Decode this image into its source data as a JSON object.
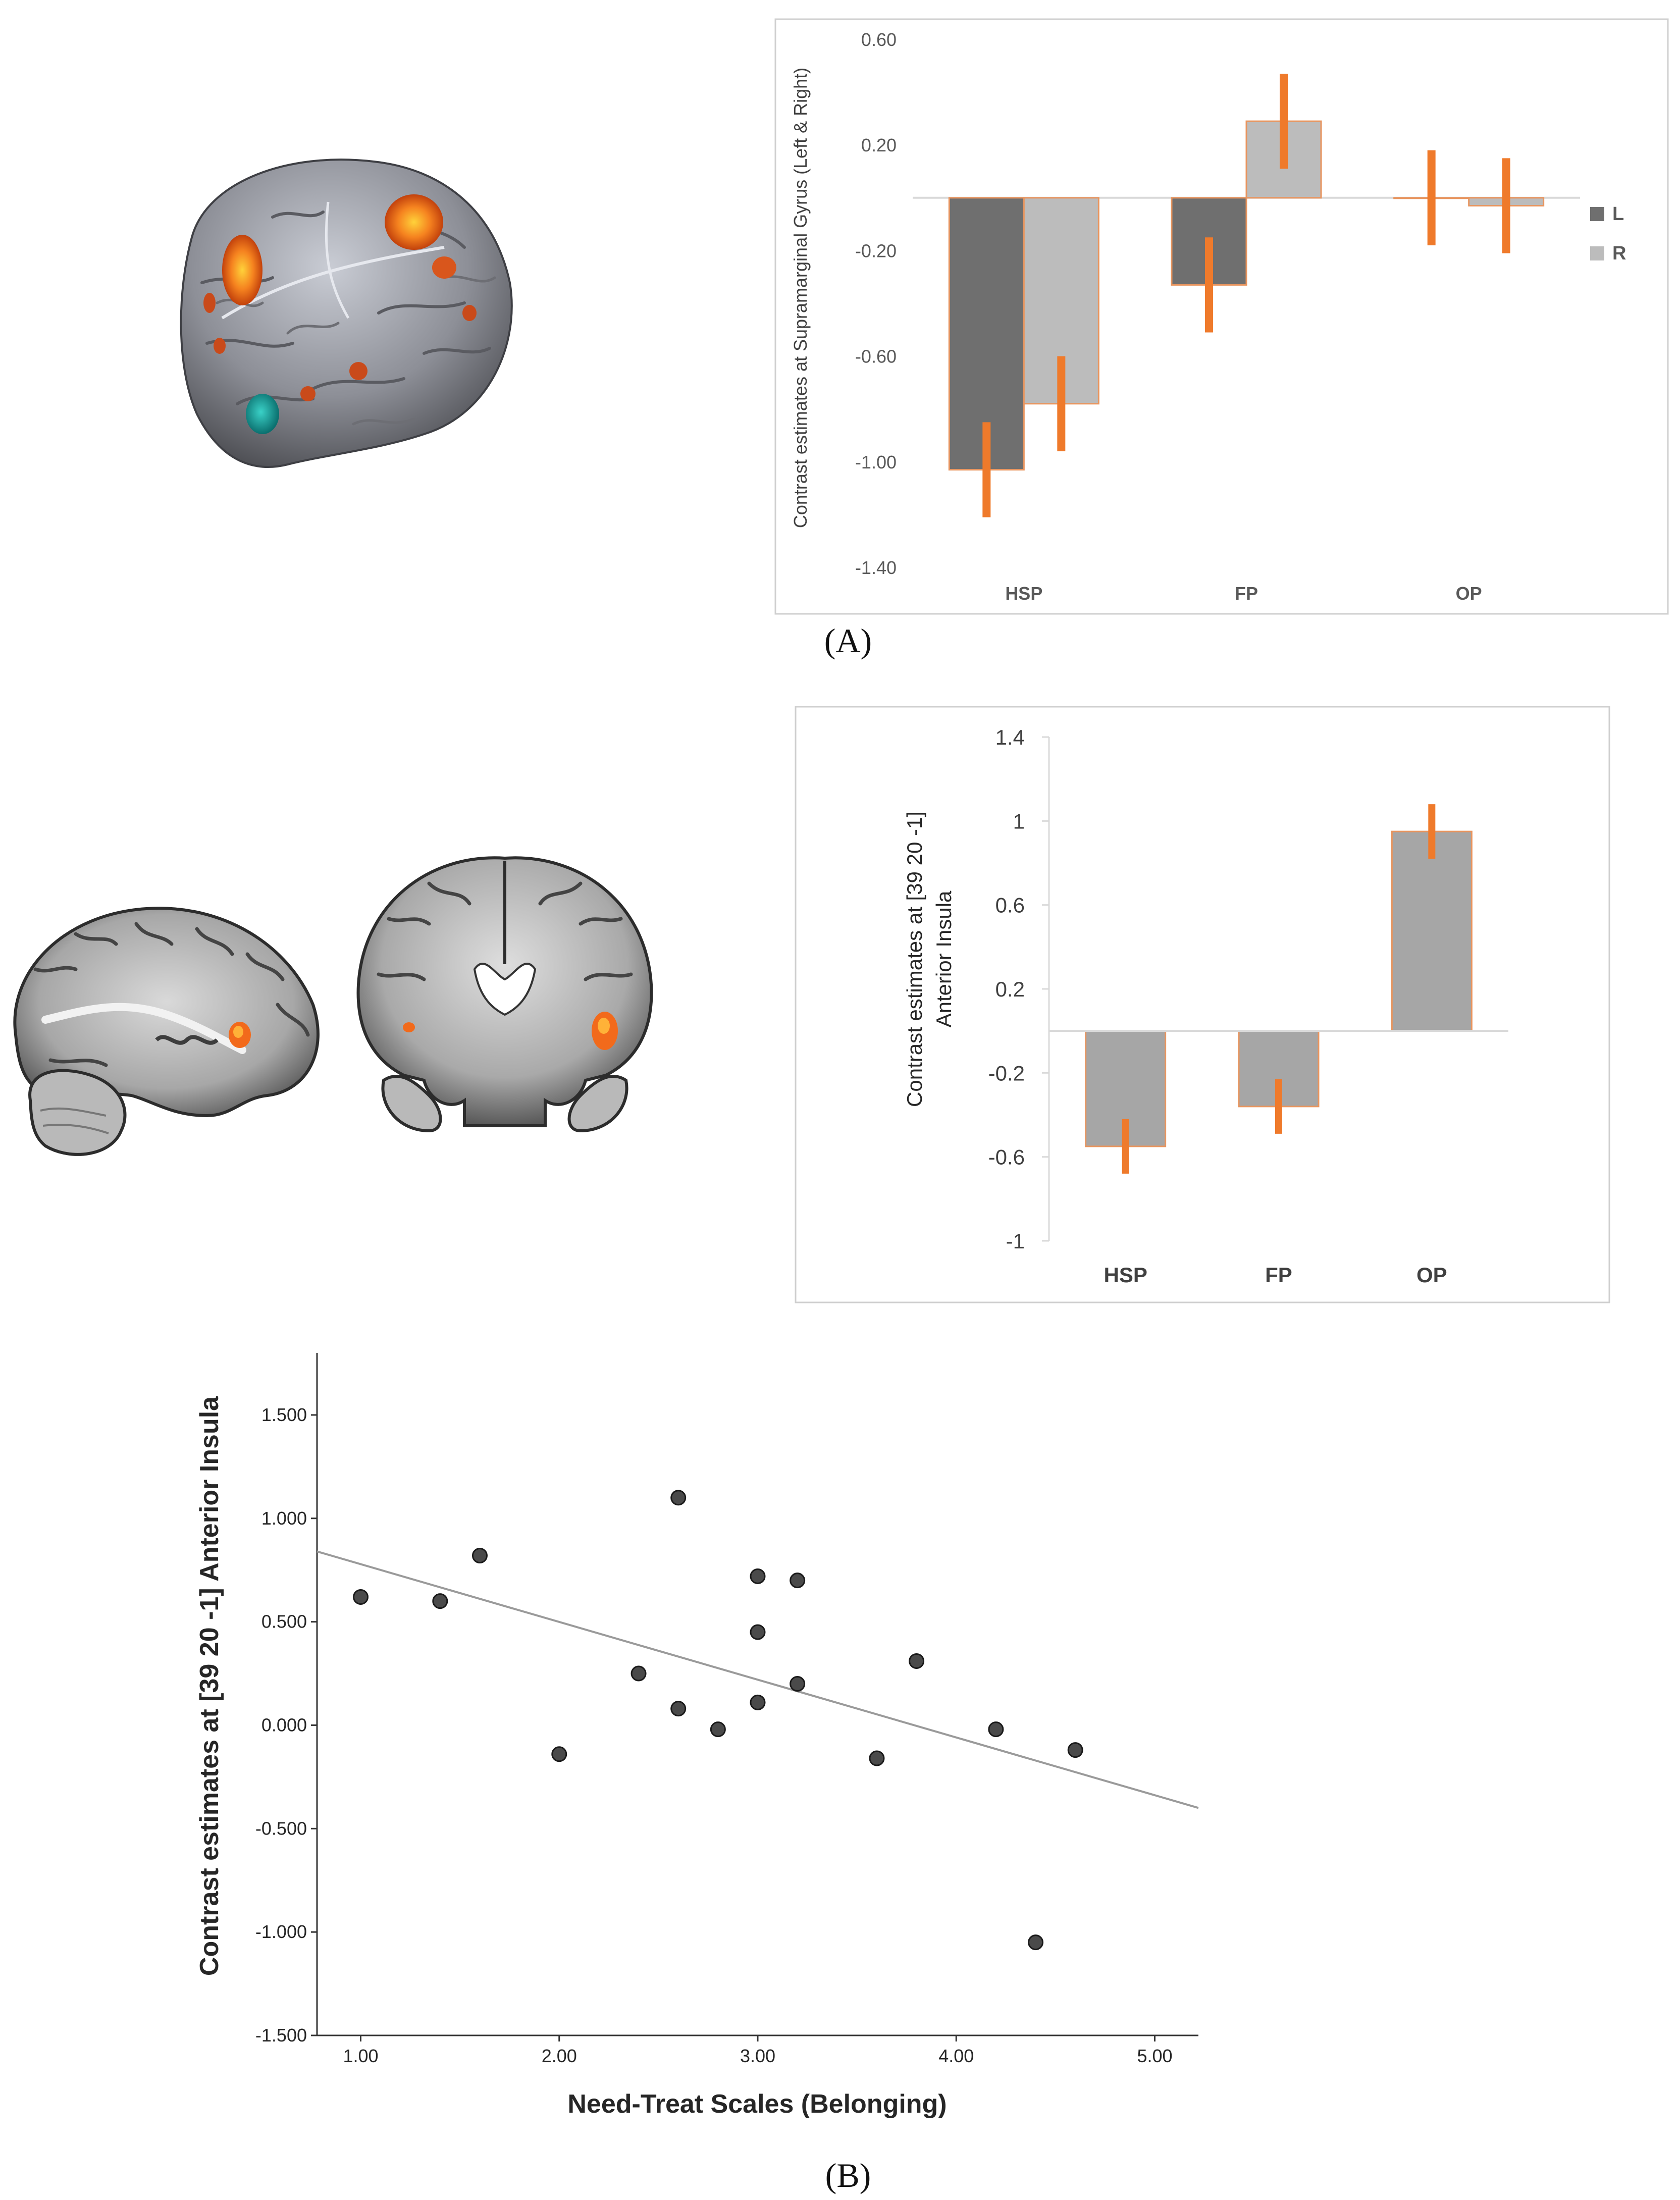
{
  "colors": {
    "bar_dark": "#6f6f6f",
    "bar_light": "#bcbcbc",
    "bar_mid": "#a6a6a6",
    "bar_outline": "#e8955f",
    "error_bar": "#ef7a2b",
    "scatter_point": "#4a4a4a",
    "fit_line": "#9a9a9a",
    "frame": "#cfcfcf"
  },
  "labels": {
    "panel_a": "(A)",
    "panel_b": "(B)"
  },
  "chart_data": [
    {
      "id": "chartA",
      "type": "bar",
      "title": "",
      "xlabel": "",
      "ylabel": "Contrast estimates at Supramarginal Gyrus (Left & Right)",
      "categories": [
        "HSP",
        "FP",
        "OP"
      ],
      "ylim": [
        -1.4,
        0.6
      ],
      "yticks": [
        0.6,
        0.2,
        -0.2,
        -0.6,
        -1.0,
        -1.4
      ],
      "ytick_labels": [
        "0.60",
        "0.20",
        "-0.20",
        "-0.60",
        "-1.00",
        "-1.40"
      ],
      "legend": "right",
      "series": [
        {
          "name": "L",
          "colorKey": "bar_dark",
          "values": [
            -1.03,
            -0.33,
            0.0
          ],
          "err_low": [
            -1.21,
            -0.51,
            -0.18
          ],
          "err_high": [
            -0.85,
            -0.15,
            0.18
          ]
        },
        {
          "name": "R",
          "colorKey": "bar_light",
          "values": [
            -0.78,
            0.29,
            -0.03
          ],
          "err_low": [
            -0.96,
            0.11,
            -0.21
          ],
          "err_high": [
            -0.6,
            0.47,
            0.15
          ]
        }
      ]
    },
    {
      "id": "chartB",
      "type": "bar",
      "title": "",
      "xlabel": "",
      "ylabel_lines": [
        "Contrast estimates at [39 20 -1]",
        "Anterior Insula"
      ],
      "categories": [
        "HSP",
        "FP",
        "OP"
      ],
      "ylim": [
        -1,
        1.4
      ],
      "yticks": [
        1.4,
        1,
        0.6,
        0.2,
        -0.2,
        -0.6,
        -1
      ],
      "ytick_labels": [
        "1.4",
        "1",
        "0.6",
        "0.2",
        "-0.2",
        "-0.6",
        "-1"
      ],
      "series": [
        {
          "name": "Anterior Insula",
          "colorKey": "bar_mid",
          "values": [
            -0.55,
            -0.36,
            0.95
          ],
          "err_low": [
            -0.68,
            -0.49,
            0.82
          ],
          "err_high": [
            -0.42,
            -0.23,
            1.08
          ]
        }
      ]
    },
    {
      "id": "chartC",
      "type": "scatter",
      "title": "",
      "xlabel": "Need-Treat Scales (Belonging)",
      "ylabel": "Contrast estimates at [39 20 -1] Anterior Insula",
      "xlim": [
        0.78,
        5.22
      ],
      "ylim": [
        -1.5,
        1.8
      ],
      "xticks": [
        1,
        2,
        3,
        4,
        5
      ],
      "xtick_labels": [
        "1.00",
        "2.00",
        "3.00",
        "4.00",
        "5.00"
      ],
      "yticks": [
        1.5,
        1.0,
        0.5,
        0.0,
        -0.5,
        -1.0,
        -1.5
      ],
      "ytick_labels": [
        "1.500",
        "1.000",
        "0.500",
        "0.000",
        "-0.500",
        "-1.000",
        "-1.500"
      ],
      "points": [
        [
          1.0,
          0.62
        ],
        [
          1.4,
          0.6
        ],
        [
          1.6,
          0.82
        ],
        [
          2.0,
          -0.14
        ],
        [
          2.4,
          0.25
        ],
        [
          2.6,
          1.1
        ],
        [
          2.6,
          0.08
        ],
        [
          2.8,
          -0.02
        ],
        [
          3.0,
          0.72
        ],
        [
          3.0,
          0.45
        ],
        [
          3.0,
          0.11
        ],
        [
          3.2,
          0.7
        ],
        [
          3.2,
          0.2
        ],
        [
          3.6,
          -0.16
        ],
        [
          3.8,
          0.31
        ],
        [
          4.2,
          -0.02
        ],
        [
          4.4,
          -1.05
        ],
        [
          4.6,
          -0.12
        ]
      ],
      "fit_line": {
        "x": [
          0.78,
          5.22
        ],
        "y": [
          0.84,
          -0.4
        ]
      }
    }
  ]
}
